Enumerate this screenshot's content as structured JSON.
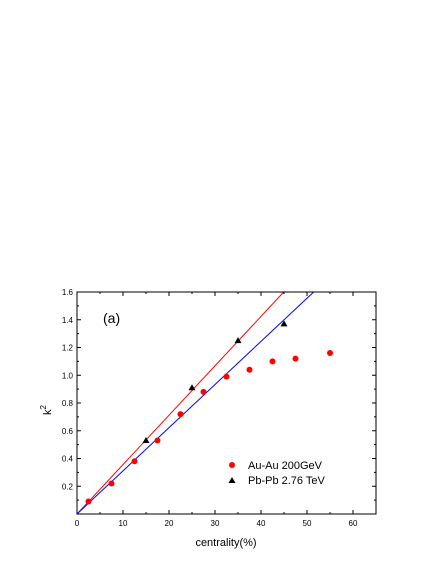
{
  "chart_data": {
    "type": "scatter",
    "panel_label": "(a)",
    "xlabel": "centrality(%)",
    "ylabel": "k",
    "ylabel_sup": "2",
    "xlim": [
      0,
      65
    ],
    "ylim": [
      0,
      1.6
    ],
    "x_ticks": [
      "0",
      "10",
      "20",
      "30",
      "40",
      "50",
      "60"
    ],
    "y_ticks": [
      "0.2",
      "0.4",
      "0.6",
      "0.8",
      "1.0",
      "1.2",
      "1.4",
      "1.6"
    ],
    "x_tick_values": [
      0,
      10,
      20,
      30,
      40,
      50,
      60
    ],
    "y_tick_values": [
      0.2,
      0.4,
      0.6,
      0.8,
      1.0,
      1.2,
      1.4,
      1.6
    ],
    "legend_position": "bottom-right",
    "series": [
      {
        "name": "Au-Au   200GeV",
        "marker": "circle",
        "color": "#ff0000",
        "points": [
          [
            2.5,
            0.09
          ],
          [
            7.5,
            0.22
          ],
          [
            12.5,
            0.38
          ],
          [
            17.5,
            0.53
          ],
          [
            22.5,
            0.72
          ],
          [
            27.5,
            0.88
          ],
          [
            32.5,
            0.99
          ],
          [
            37.5,
            1.04
          ],
          [
            42.5,
            1.1
          ],
          [
            47.5,
            1.12
          ],
          [
            55,
            1.16
          ]
        ]
      },
      {
        "name": "Pb-Pb  2.76 TeV",
        "marker": "triangle",
        "color": "#000000",
        "points": [
          [
            15,
            0.53
          ],
          [
            25,
            0.91
          ],
          [
            35,
            1.25
          ],
          [
            45,
            1.37
          ]
        ]
      }
    ],
    "fit_lines": [
      {
        "color": "#ff0000",
        "slope": 0.0356
      },
      {
        "color": "#0000ff",
        "slope": 0.0311
      }
    ]
  }
}
